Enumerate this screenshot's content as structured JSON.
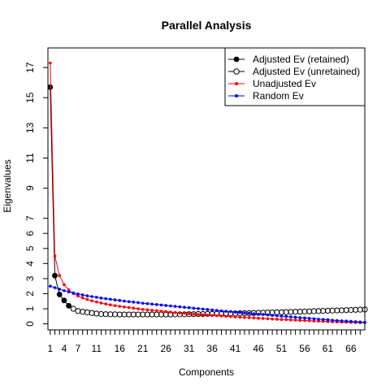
{
  "chart_data": {
    "type": "line",
    "title": "Parallel Analysis",
    "xlabel": "Components",
    "ylabel": "Eigenvalues",
    "xlim": [
      0.5,
      69
    ],
    "ylim": [
      -0.4,
      18.3
    ],
    "xticks": [
      1,
      4,
      7,
      11,
      16,
      21,
      26,
      31,
      36,
      41,
      46,
      51,
      56,
      61,
      66
    ],
    "yticks": [
      0,
      1,
      2,
      3,
      4,
      5,
      6,
      7,
      9,
      11,
      13,
      15,
      17
    ],
    "legend_position": "top-right",
    "series": [
      {
        "name": "Adjusted Ev (retained)",
        "color": "#000000",
        "marker": "filled-circle",
        "x": [
          1,
          2,
          3,
          4,
          5
        ],
        "values": [
          15.7,
          3.2,
          1.95,
          1.55,
          1.2
        ]
      },
      {
        "name": "Adjusted Ev (unretained)",
        "color": "#000000",
        "marker": "open-circle",
        "x_start": 6,
        "values": [
          1.0,
          0.85,
          0.8,
          0.76,
          0.72,
          0.68,
          0.65,
          0.64,
          0.63,
          0.63,
          0.62,
          0.62,
          0.62,
          0.62,
          0.62,
          0.62,
          0.62,
          0.62,
          0.62,
          0.62,
          0.62,
          0.62,
          0.63,
          0.63,
          0.63,
          0.64,
          0.64,
          0.65,
          0.65,
          0.66,
          0.66,
          0.67,
          0.67,
          0.68,
          0.69,
          0.69,
          0.7,
          0.71,
          0.71,
          0.72,
          0.73,
          0.74,
          0.75,
          0.76,
          0.77,
          0.77,
          0.78,
          0.79,
          0.8,
          0.81,
          0.82,
          0.83,
          0.84,
          0.85,
          0.86,
          0.87,
          0.88,
          0.89,
          0.9,
          0.91,
          0.92,
          0.93,
          0.94,
          0.95
        ]
      },
      {
        "name": "Unadjusted Ev",
        "color": "#ff0000",
        "marker": "small-dot",
        "x_start": 1,
        "values": [
          17.3,
          4.5,
          3.2,
          2.6,
          2.25,
          2.0,
          1.85,
          1.72,
          1.62,
          1.53,
          1.45,
          1.38,
          1.32,
          1.26,
          1.21,
          1.16,
          1.12,
          1.08,
          1.04,
          1.0,
          0.96,
          0.93,
          0.9,
          0.87,
          0.84,
          0.81,
          0.78,
          0.75,
          0.72,
          0.7,
          0.67,
          0.64,
          0.62,
          0.6,
          0.58,
          0.56,
          0.54,
          0.52,
          0.5,
          0.48,
          0.46,
          0.44,
          0.42,
          0.41,
          0.39,
          0.37,
          0.36,
          0.34,
          0.32,
          0.31,
          0.29,
          0.28,
          0.26,
          0.25,
          0.23,
          0.22,
          0.21,
          0.19,
          0.18,
          0.17,
          0.15,
          0.14,
          0.13,
          0.12,
          0.11,
          0.1,
          0.09,
          0.08,
          0.07
        ]
      },
      {
        "name": "Random Ev",
        "color": "#0000ff",
        "marker": "small-dot",
        "x_start": 1,
        "values": [
          2.5,
          2.4,
          2.3,
          2.2,
          2.12,
          2.05,
          1.98,
          1.92,
          1.86,
          1.81,
          1.76,
          1.71,
          1.67,
          1.63,
          1.59,
          1.55,
          1.51,
          1.47,
          1.44,
          1.41,
          1.37,
          1.34,
          1.31,
          1.28,
          1.25,
          1.22,
          1.19,
          1.16,
          1.13,
          1.1,
          1.07,
          1.04,
          1.01,
          0.98,
          0.95,
          0.92,
          0.89,
          0.86,
          0.83,
          0.81,
          0.78,
          0.75,
          0.72,
          0.7,
          0.67,
          0.64,
          0.62,
          0.59,
          0.56,
          0.54,
          0.51,
          0.49,
          0.46,
          0.44,
          0.41,
          0.39,
          0.36,
          0.34,
          0.31,
          0.29,
          0.27,
          0.24,
          0.22,
          0.2,
          0.18,
          0.16,
          0.14,
          0.12,
          0.1
        ]
      }
    ]
  }
}
